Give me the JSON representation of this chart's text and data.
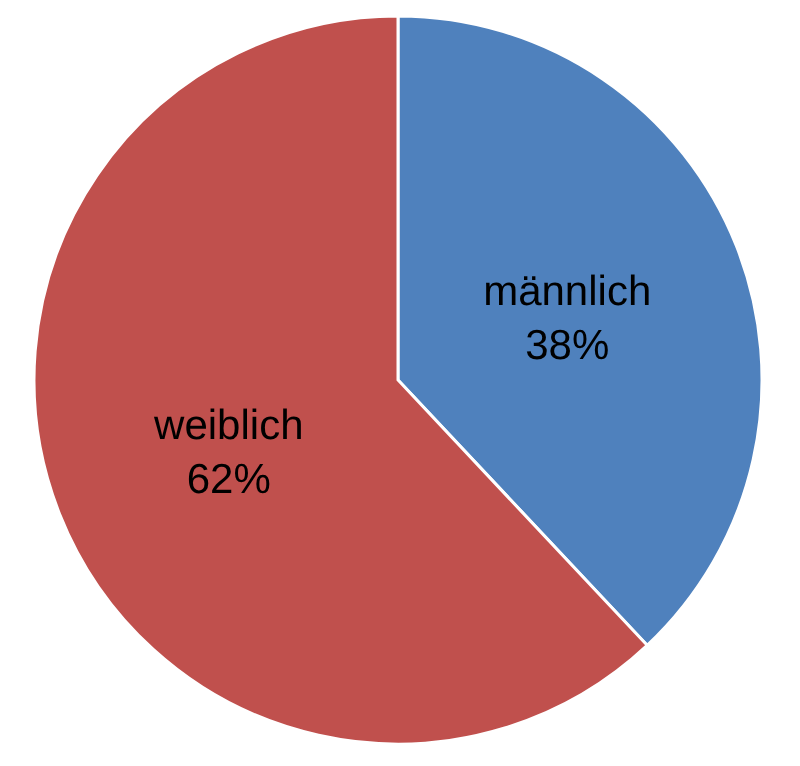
{
  "chart_data": {
    "type": "pie",
    "categories": [
      "männlich",
      "weiblich"
    ],
    "values": [
      38,
      62
    ],
    "colors": [
      "#4f81bd",
      "#c0504d"
    ],
    "value_labels": [
      "38%",
      "62%"
    ]
  }
}
